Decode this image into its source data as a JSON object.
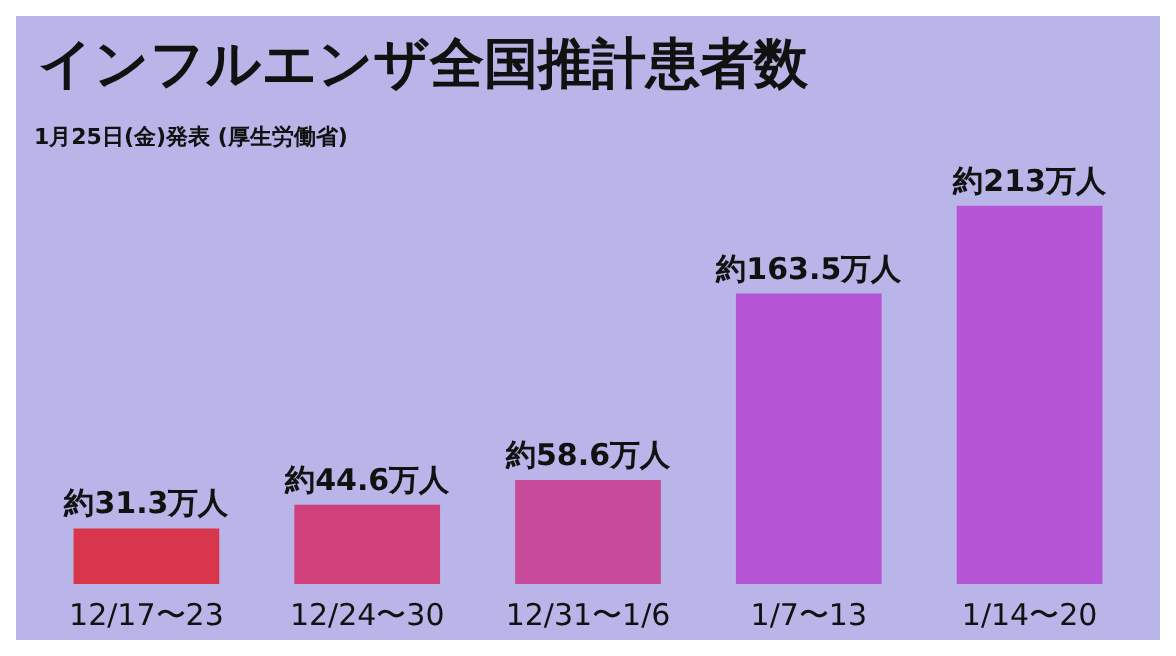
{
  "chart_data": {
    "type": "bar",
    "title": "インフルエンザ全国推計患者数",
    "subtitle": "1月25日(金)発表 (厚生労働省)",
    "categories": [
      "12/17〜23",
      "12/24〜30",
      "12/31〜1/6",
      "1/7〜13",
      "1/14〜20"
    ],
    "values": [
      31.3,
      44.6,
      58.6,
      163.5,
      213
    ],
    "value_labels": [
      "約31.3万人",
      "約44.6万人",
      "約58.6万人",
      "約163.5万人",
      "約213万人"
    ],
    "colors": [
      "#d8364a",
      "#d0407a",
      "#c84a9a",
      "#b654d6",
      "#b654d6"
    ]
  }
}
